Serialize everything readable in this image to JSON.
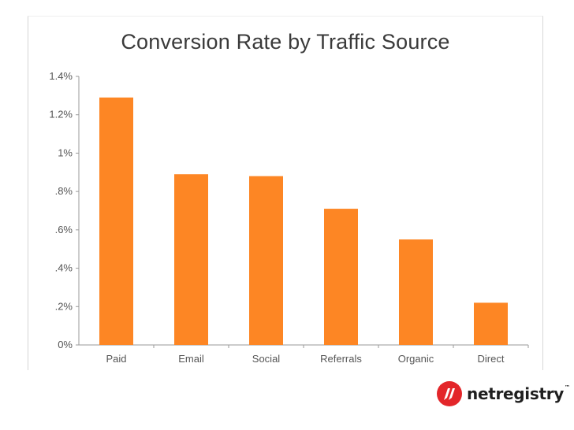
{
  "chart_data": {
    "type": "bar",
    "title": "Conversion Rate by Traffic Source",
    "xlabel": "",
    "ylabel": "",
    "categories": [
      "Paid",
      "Email",
      "Social",
      "Referrals",
      "Organic",
      "Direct"
    ],
    "values": [
      1.29,
      0.89,
      0.88,
      0.71,
      0.55,
      0.22
    ],
    "unit": "%",
    "ylim": [
      0,
      1.4
    ],
    "yticks": [
      0,
      0.2,
      0.4,
      0.6,
      0.8,
      1.0,
      1.2,
      1.4
    ],
    "ytick_labels": [
      "0%",
      ".2%",
      ".4%",
      ".6%",
      ".8%",
      "1%",
      "1.2%",
      "1.4%"
    ],
    "grid": false,
    "bar_color": "#fd8624"
  },
  "logo": {
    "text": "netregistry",
    "tm": "™",
    "color": "#e3262a"
  }
}
